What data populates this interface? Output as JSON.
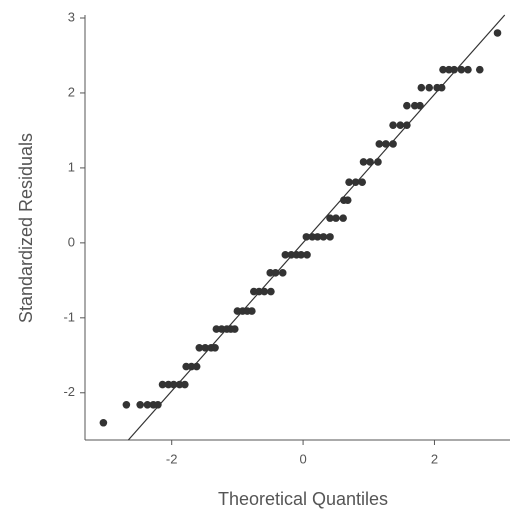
{
  "chart_data": {
    "type": "scatter",
    "x_label": "Theoretical Quantiles",
    "y_label": "Standardized Residuals",
    "color": "#333333",
    "x": [
      -3.04,
      -2.69,
      -2.48,
      -2.37,
      -2.28,
      -2.21,
      -2.14,
      -2.05,
      -1.97,
      -1.88,
      -1.8,
      -1.78,
      -1.7,
      -1.62,
      -1.58,
      -1.49,
      -1.4,
      -1.34,
      -1.32,
      -1.24,
      -1.16,
      -1.1,
      -1.04,
      -1.0,
      -0.92,
      -0.85,
      -0.78,
      -0.75,
      -0.67,
      -0.59,
      -0.49,
      -0.5,
      -0.42,
      -0.31,
      -0.27,
      -0.18,
      -0.1,
      -0.03,
      0.06,
      0.05,
      0.14,
      0.22,
      0.31,
      0.41,
      0.41,
      0.5,
      0.61,
      0.62,
      0.68,
      0.7,
      0.8,
      0.9,
      0.92,
      1.02,
      1.14,
      1.16,
      1.26,
      1.37,
      1.37,
      1.48,
      1.58,
      1.58,
      1.7,
      1.78,
      1.8,
      1.92,
      2.04,
      2.11,
      2.13,
      2.22,
      2.3,
      2.41,
      2.51,
      2.69,
      2.96
    ],
    "y": [
      -2.4,
      -2.16,
      -2.16,
      -2.16,
      -2.16,
      -2.16,
      -1.89,
      -1.89,
      -1.89,
      -1.89,
      -1.89,
      -1.65,
      -1.65,
      -1.65,
      -1.4,
      -1.4,
      -1.4,
      -1.4,
      -1.15,
      -1.15,
      -1.15,
      -1.15,
      -1.15,
      -0.91,
      -0.91,
      -0.91,
      -0.91,
      -0.65,
      -0.65,
      -0.65,
      -0.65,
      -0.4,
      -0.4,
      -0.4,
      -0.16,
      -0.16,
      -0.16,
      -0.16,
      -0.16,
      0.08,
      0.08,
      0.08,
      0.08,
      0.08,
      0.33,
      0.33,
      0.33,
      0.57,
      0.57,
      0.81,
      0.81,
      0.81,
      1.08,
      1.08,
      1.08,
      1.32,
      1.32,
      1.32,
      1.57,
      1.57,
      1.57,
      1.83,
      1.83,
      1.83,
      2.07,
      2.07,
      2.07,
      2.07,
      2.31,
      2.31,
      2.31,
      2.31,
      2.31,
      2.31,
      2.8
    ],
    "reference_line": {
      "x": [
        -2.66,
        3.07
      ],
      "y": [
        -2.63,
        3.04
      ],
      "color": "#333333"
    },
    "xlim": [
      -3.32,
      3.15
    ],
    "ylim": [
      -2.63,
      3.04
    ],
    "xticks": [
      -2,
      0,
      2
    ],
    "yticks": [
      -2,
      -1,
      0,
      1,
      2,
      3
    ]
  }
}
